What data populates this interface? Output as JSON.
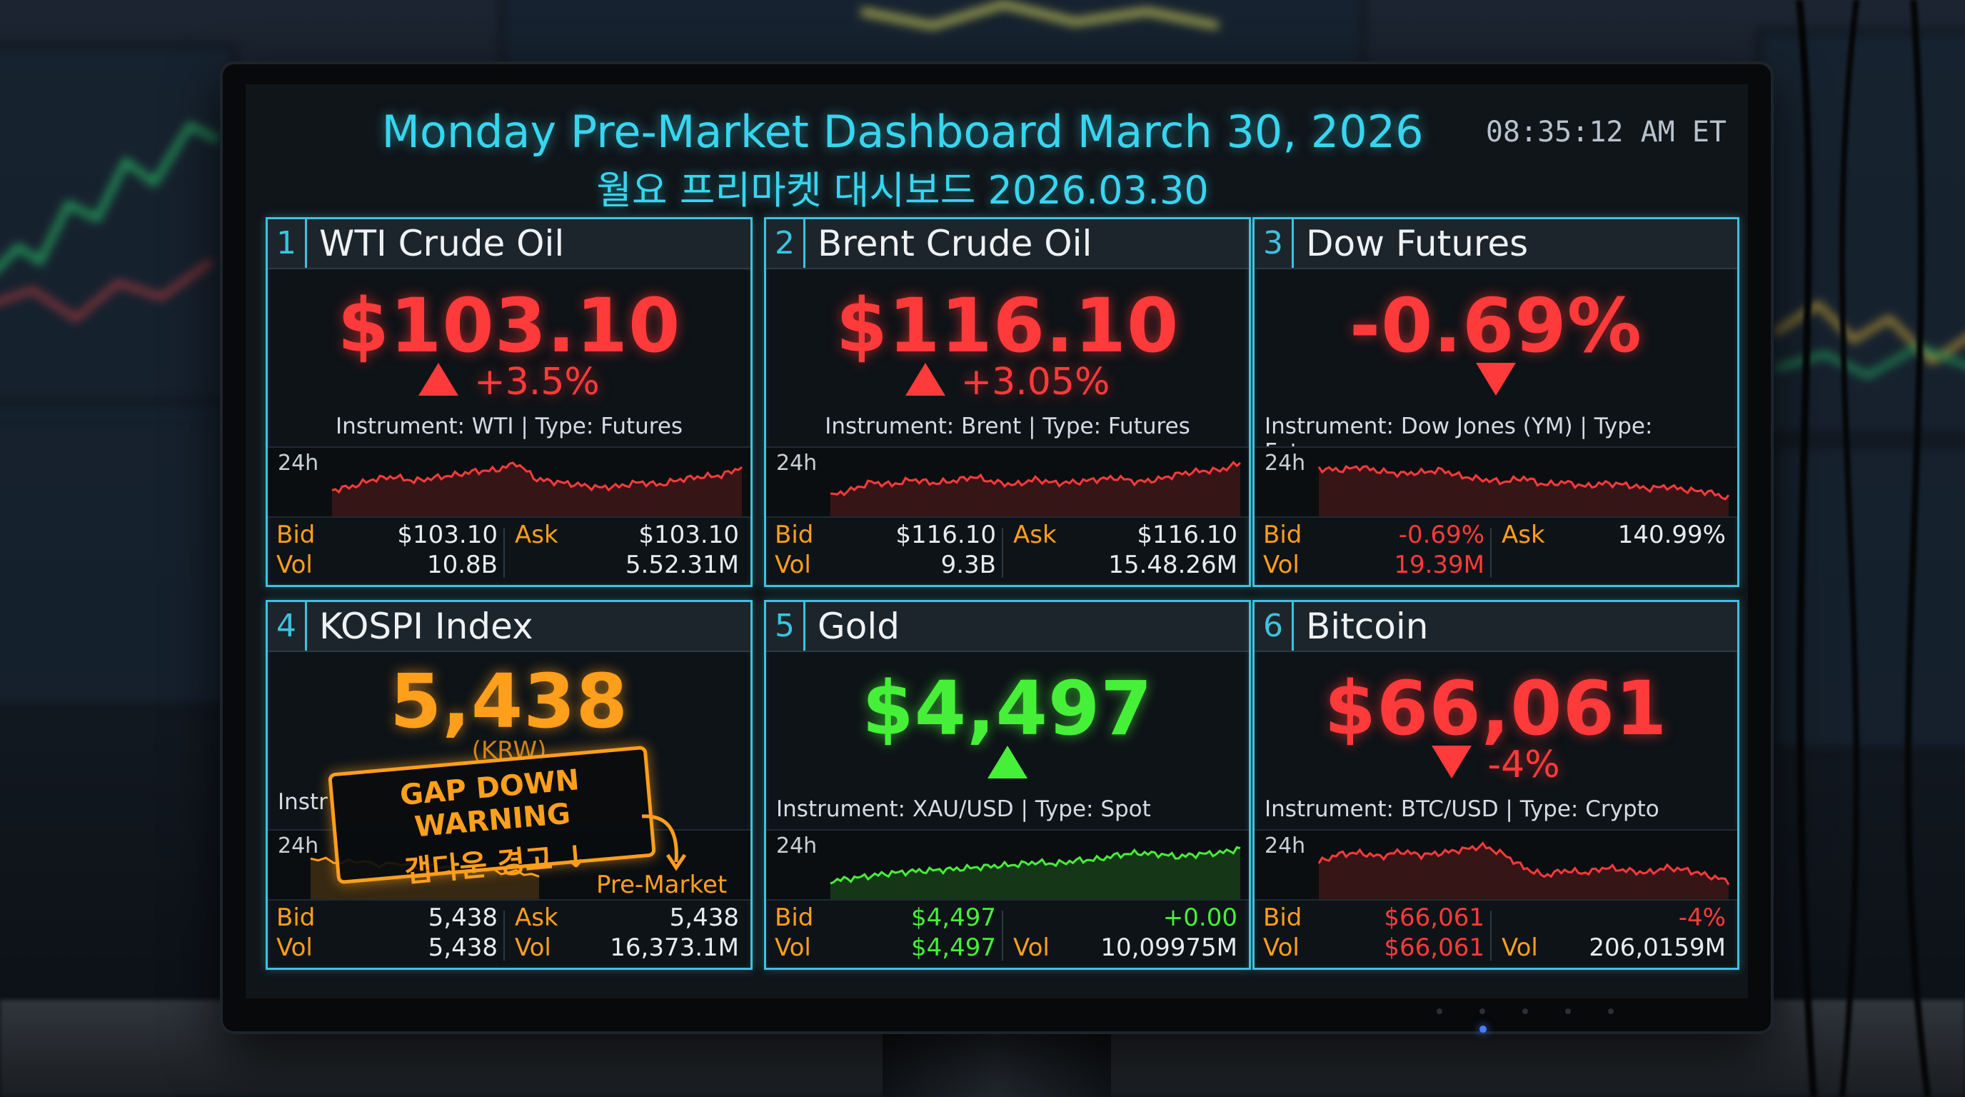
{
  "header": {
    "title": "Monday Pre-Market Dashboard March 30, 2026",
    "subtitle": "월요 프리마켓 대시보드 2026.03.30",
    "clock": "08:35:12 AM ET"
  },
  "panels": [
    {
      "num": "1",
      "name": "WTI Crude Oil",
      "price": "$103.10",
      "change": "+3.5%",
      "direction": "up",
      "instrument": "Instrument: WTI | Type: Futures",
      "chart_label": "24h",
      "bid_label": "Bid",
      "bid": "$103.10",
      "ask_label": "Ask",
      "ask": "$103.10",
      "vol_label": "Vol",
      "vol": "10.8B",
      "vol2": "5.52.31M",
      "trend": [
        0.35,
        0.42,
        0.55,
        0.6,
        0.52,
        0.58,
        0.63,
        0.7,
        0.72,
        0.85,
        0.55,
        0.5,
        0.45,
        0.4,
        0.42,
        0.5,
        0.45,
        0.55,
        0.6,
        0.62,
        0.78
      ]
    },
    {
      "num": "2",
      "name": "Brent Crude Oil",
      "price": "$116.10",
      "change": "+3.05%",
      "direction": "up",
      "instrument": "Instrument: Brent | Type: Futures",
      "chart_label": "24h",
      "bid_label": "Bid",
      "bid": "$116.10",
      "ask_label": "Ask",
      "ask": "$116.10",
      "vol_label": "Vol",
      "vol": "9.3B",
      "vol2": "15.48.26M",
      "trend": [
        0.25,
        0.35,
        0.5,
        0.45,
        0.55,
        0.48,
        0.52,
        0.6,
        0.5,
        0.45,
        0.55,
        0.48,
        0.5,
        0.55,
        0.58,
        0.5,
        0.55,
        0.65,
        0.7,
        0.72,
        0.85
      ]
    },
    {
      "num": "3",
      "name": "Dow Futures",
      "price": "-0.69%",
      "change": "",
      "direction": "down",
      "instrument": "Instrument: Dow Jones (YM) | Type: Futures",
      "chart_label": "24h",
      "bid_label": "Bid",
      "bid": "-0.69%",
      "ask_label": "Ask",
      "ask": "140.99%",
      "vol_label": "Vol",
      "vol": "19.39M",
      "vol2": "",
      "trend": [
        0.75,
        0.72,
        0.78,
        0.7,
        0.65,
        0.68,
        0.72,
        0.6,
        0.55,
        0.5,
        0.58,
        0.45,
        0.5,
        0.42,
        0.48,
        0.45,
        0.38,
        0.42,
        0.35,
        0.32,
        0.2
      ]
    },
    {
      "num": "4",
      "name": "KOSPI Index",
      "price": "5,438",
      "change": "",
      "direction": "none",
      "unit": "(KRW)",
      "instrument": "Instr",
      "chart_label": "24h",
      "warning_en": "GAP DOWN WARNING",
      "warning_ko": "갭다운 경고 ↓",
      "pre_market": "Pre-Market",
      "bid_label": "Bid",
      "bid": "5,438",
      "ask_label": "Ask",
      "ask": "5,438",
      "vol_label": "Vol",
      "vol": "5,438",
      "vol2_label": "Vol",
      "vol2": "16,373.1M",
      "trend": [
        0.6,
        0.55,
        0.5,
        0.45,
        0.4,
        0.3
      ]
    },
    {
      "num": "5",
      "name": "Gold",
      "price": "$4,497",
      "change": "",
      "direction": "up",
      "instrument": "Instrument: XAU/USD | Type: Spot",
      "chart_label": "24h",
      "bid_label": "Bid",
      "bid": "$4,497",
      "ask": "+0.00",
      "vol_label": "Vol",
      "vol": "$4,497",
      "vol2_label": "Vol",
      "vol2": "10,09975M",
      "trend": [
        0.2,
        0.25,
        0.3,
        0.35,
        0.38,
        0.4,
        0.42,
        0.45,
        0.48,
        0.5,
        0.55,
        0.52,
        0.58,
        0.6,
        0.68,
        0.72,
        0.7,
        0.65,
        0.7,
        0.72,
        0.8
      ]
    },
    {
      "num": "6",
      "name": "Bitcoin",
      "price": "$66,061",
      "change": "-4%",
      "direction": "down",
      "instrument": "Instrument: BTC/USD | Type: Crypto",
      "chart_label": "24h",
      "bid_label": "Bid",
      "bid": "$66,061",
      "ask": "-4%",
      "vol_label": "Vol",
      "vol": "$66,061",
      "vol2_label": "Vol",
      "vol2": "206,0159M",
      "trend": [
        0.55,
        0.7,
        0.72,
        0.65,
        0.75,
        0.68,
        0.72,
        0.78,
        0.85,
        0.7,
        0.45,
        0.3,
        0.4,
        0.35,
        0.45,
        0.4,
        0.35,
        0.45,
        0.4,
        0.3,
        0.2
      ]
    }
  ],
  "colors": {
    "accent": "#3cc3df",
    "up_red": "#ff3a3a",
    "gain_green": "#46f038",
    "label_orange": "#ff9f1c"
  }
}
